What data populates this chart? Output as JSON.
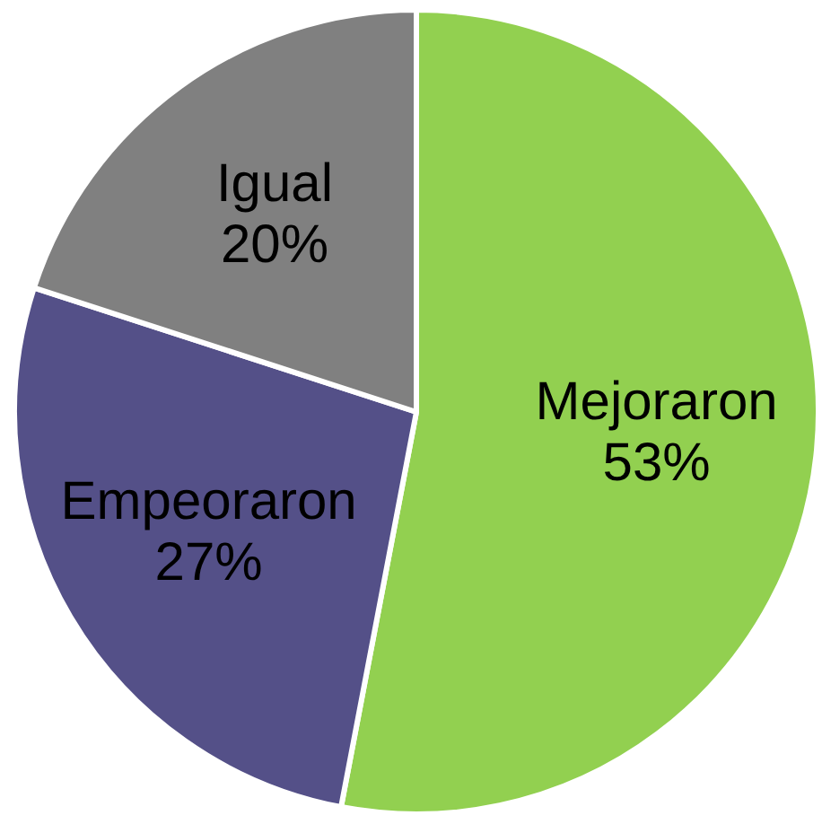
{
  "chart_data": {
    "type": "pie",
    "categories": [
      "Mejoraron",
      "Empeoraron",
      "Igual"
    ],
    "values": [
      53,
      27,
      20
    ],
    "colors": [
      "#92d050",
      "#545088",
      "#808080"
    ],
    "value_labels": [
      "53%",
      "27%",
      "20%"
    ],
    "legend": false
  }
}
